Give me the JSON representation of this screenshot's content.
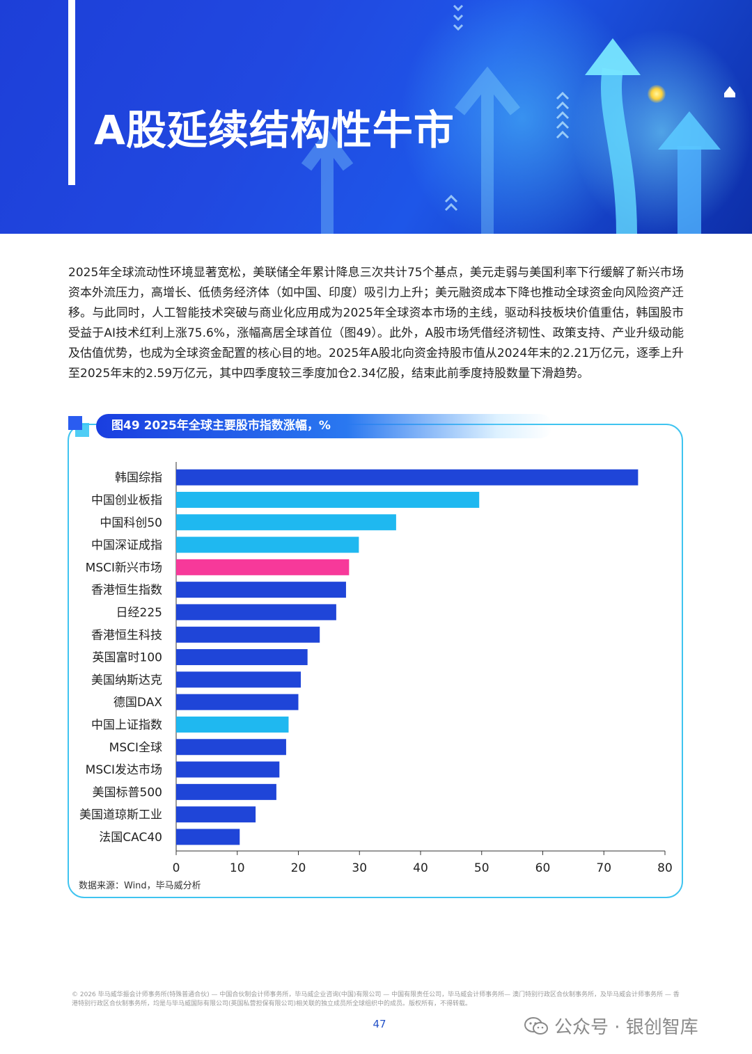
{
  "header": {
    "title": "A股延续结构性牛市"
  },
  "body": {
    "paragraph": "2025年全球流动性环境显著宽松，美联储全年累计降息三次共计75个基点，美元走弱与美国利率下行缓解了新兴市场资本外流压力，高增长、低债务经济体（如中国、印度）吸引力上升；美元融资成本下降也推动全球资金向风险资产迁移。与此同时，人工智能技术突破与商业化应用成为2025年全球资本市场的主线，驱动科技板块价值重估，韩国股市受益于AI技术红利上涨75.6%，涨幅高居全球首位（图49）。此外，A股市场凭借经济韧性、政策支持、产业升级动能及估值优势，也成为全球资金配置的核心目的地。2025年A股北向资金持股市值从2024年末的2.21万亿元，逐季上升至2025年末的2.59万亿元，其中四季度较三季度加仓2.34亿股，结束此前季度持股数量下滑趋势。"
  },
  "figure": {
    "caption": "图49 2025年全球主要股市指数涨幅，%",
    "source": "数据来源：Wind，毕马威分析"
  },
  "chart_data": {
    "type": "bar",
    "orientation": "horizontal",
    "title": "图49 2025年全球主要股市指数涨幅，%",
    "categories": [
      "韩国综指",
      "中国创业板指",
      "中国科创50",
      "中国深证成指",
      "MSCI新兴市场",
      "香港恒生指数",
      "日经225",
      "香港恒生科技",
      "英国富时100",
      "美国纳斯达克",
      "德国DAX",
      "中国上证指数",
      "MSCI全球",
      "MSCI发达市场",
      "美国标普500",
      "美国道琼斯工业",
      "法国CAC40"
    ],
    "values": [
      75.6,
      49.6,
      36.0,
      29.9,
      28.3,
      27.8,
      26.2,
      23.5,
      21.5,
      20.4,
      20.0,
      18.4,
      18.0,
      16.9,
      16.4,
      13.0,
      10.4
    ],
    "bar_colors": [
      "#1f45d8",
      "#1fb8f0",
      "#1fb8f0",
      "#1fb8f0",
      "#f7399a",
      "#1f45d8",
      "#1f45d8",
      "#1f45d8",
      "#1f45d8",
      "#1f45d8",
      "#1f45d8",
      "#1fb8f0",
      "#1f45d8",
      "#1f45d8",
      "#1f45d8",
      "#1f45d8",
      "#1f45d8"
    ],
    "xlim": [
      0,
      80
    ],
    "xticks": [
      0,
      10,
      20,
      30,
      40,
      50,
      60,
      70,
      80
    ],
    "xlabel": "",
    "ylabel": "",
    "grid": false
  },
  "footer": {
    "note": "© 2026 毕马威华振会计师事务所(特殊普通合伙) — 中国合伙制会计师事务所，毕马威企业咨询(中国)有限公司 — 中国有限责任公司，毕马威会计师事务所— 澳门特别行政区合伙制事务所，及毕马威会计师事务所 — 香港特别行政区合伙制事务所，均是与毕马威国际有限公司(英国私营担保有限公司)相关联的独立成员所全球组织中的成员。版权所有，不得转载。",
    "page_number": "47",
    "watermark": "公众号 · 银创智库"
  }
}
